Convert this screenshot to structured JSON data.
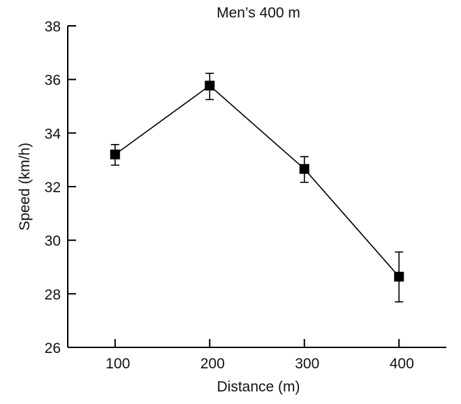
{
  "chart_data": {
    "type": "line",
    "title": "Men’s 400 m",
    "xlabel": "Distance (m)",
    "ylabel": "Speed (km/h)",
    "x": [
      100,
      200,
      300,
      400
    ],
    "xticks": [
      "100",
      "200",
      "300",
      "400"
    ],
    "yticks": [
      "26",
      "28",
      "30",
      "32",
      "34",
      "36",
      "38"
    ],
    "xlim": [
      50,
      450
    ],
    "ylim": [
      26,
      38
    ],
    "grid": false,
    "series": [
      {
        "values": [
          33.2,
          35.77,
          32.66,
          28.64
        ],
        "error_upper": [
          33.57,
          36.23,
          33.12,
          29.56
        ],
        "error_lower": [
          32.8,
          35.25,
          32.16,
          27.7
        ],
        "marker": "square",
        "color": "#000000"
      }
    ]
  }
}
